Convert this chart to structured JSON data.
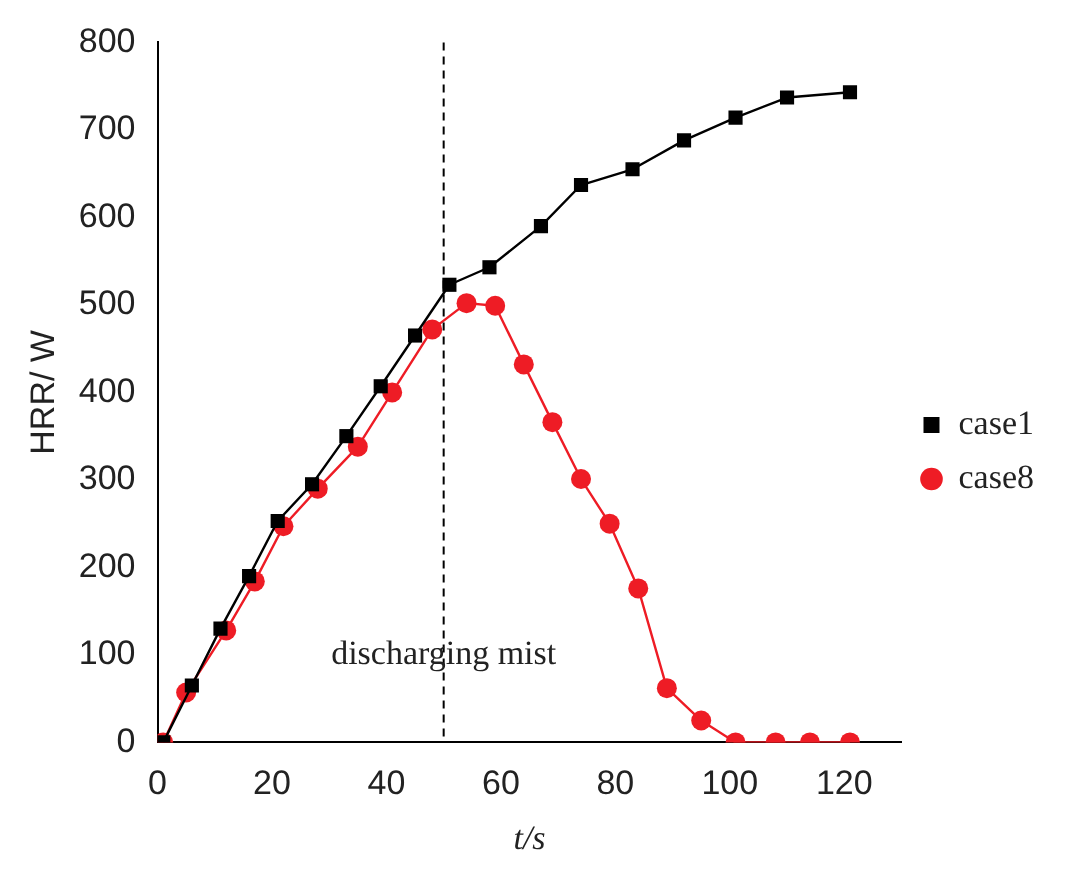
{
  "chart_data": {
    "type": "line",
    "xlabel": "t/s",
    "ylabel": "HRR/ W",
    "xlim": [
      0,
      130
    ],
    "xticks": [
      0,
      20,
      40,
      60,
      80,
      100,
      120
    ],
    "ylim": [
      0,
      800
    ],
    "yticks": [
      0,
      100,
      200,
      300,
      400,
      500,
      600,
      700,
      800
    ],
    "grid": false,
    "legend": "right",
    "line_style": "solid",
    "series": [
      {
        "name": "case1",
        "color": "#000000",
        "marker": "square",
        "x": [
          1,
          6,
          11,
          16,
          21,
          27,
          33,
          39,
          45,
          51,
          58,
          67,
          74,
          83,
          92,
          101,
          110,
          121
        ],
        "values": [
          0,
          65,
          130,
          190,
          253,
          295,
          350,
          407,
          465,
          523,
          543,
          590,
          637,
          655,
          688,
          714,
          737,
          743
        ]
      },
      {
        "name": "case8",
        "color": "#ee1c25",
        "marker": "circle",
        "x": [
          1,
          5,
          12,
          17,
          22,
          28,
          35,
          41,
          48,
          54,
          59,
          64,
          69,
          74,
          79,
          84,
          89,
          95,
          101,
          108,
          114,
          121
        ],
        "values": [
          0,
          57,
          128,
          184,
          247,
          290,
          338,
          400,
          472,
          502,
          499,
          432,
          366,
          301,
          250,
          176,
          62,
          25,
          0,
          0,
          0,
          0
        ]
      }
    ],
    "ref_lines": [
      {
        "axis": "x",
        "value": 50,
        "line_style": "dashed",
        "color": "#000000"
      }
    ],
    "annotations": [
      {
        "text": "discharging mist",
        "x": 50,
        "y": 100
      }
    ]
  }
}
